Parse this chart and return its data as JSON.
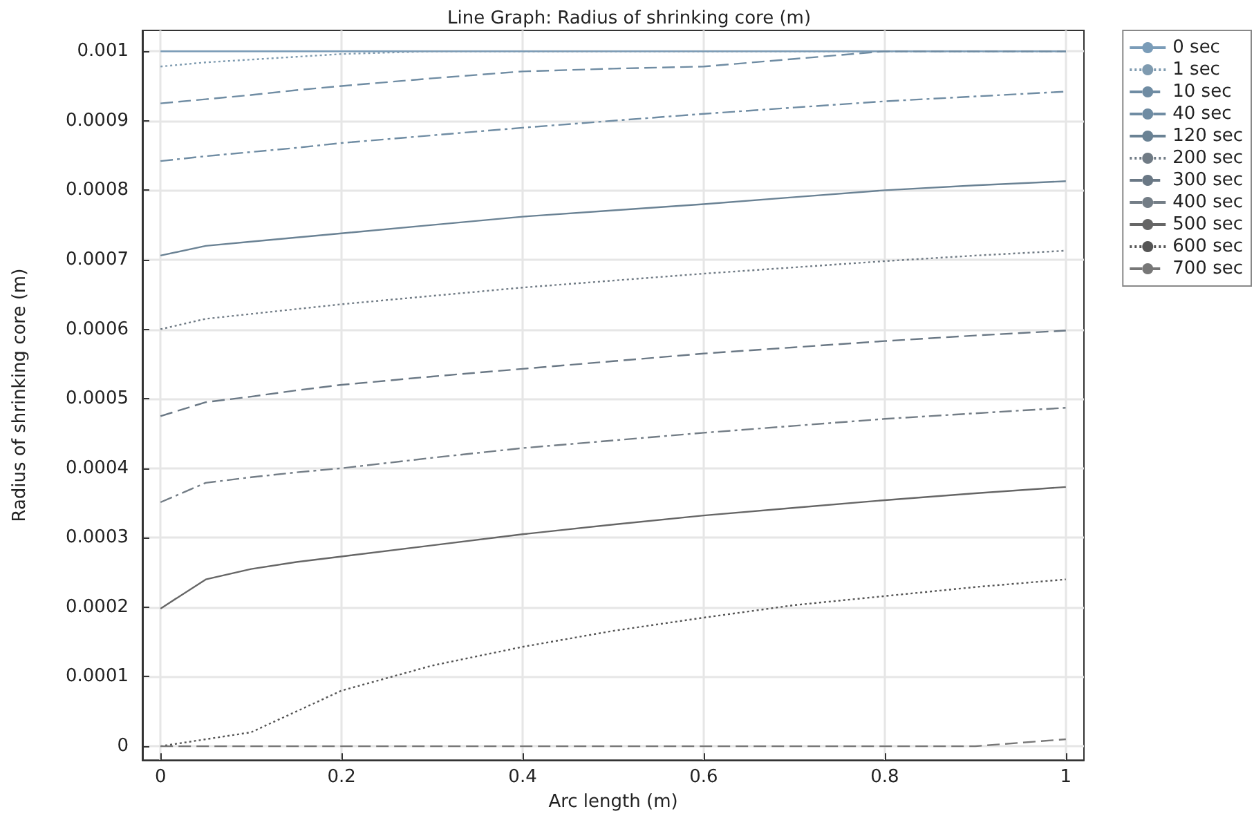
{
  "chart_data": {
    "type": "line",
    "title": "Line Graph: Radius of shrinking core (m)",
    "xlabel": "Arc length (m)",
    "ylabel": "Radius of shrinking core (m)",
    "x": [
      0,
      0.05,
      0.1,
      0.15,
      0.2,
      0.3,
      0.4,
      0.5,
      0.6,
      0.7,
      0.8,
      0.9,
      1
    ],
    "series": [
      {
        "name": "0 sec",
        "color": "#7a9cb8",
        "line_style": "solid",
        "values": [
          0.001,
          0.001,
          0.001,
          0.001,
          0.001,
          0.001,
          0.001,
          0.001,
          0.001,
          0.001,
          0.001,
          0.001,
          0.001
        ]
      },
      {
        "name": "1 sec",
        "color": "#7f9bb0",
        "line_style": "dotted",
        "values": [
          0.000978,
          0.000984,
          0.000988,
          0.000992,
          0.000996,
          0.001,
          0.001,
          0.001,
          0.001,
          0.001,
          0.001,
          0.001,
          0.001
        ]
      },
      {
        "name": "10 sec",
        "color": "#6f8ca3",
        "line_style": "dashed",
        "values": [
          0.000925,
          0.000931,
          0.000937,
          0.000944,
          0.00095,
          0.000961,
          0.000971,
          0.000975,
          0.000978,
          0.000989,
          0.001,
          0.001,
          0.001
        ]
      },
      {
        "name": "40 sec",
        "color": "#6f8ca3",
        "line_style": "dashdot",
        "values": [
          0.000842,
          0.000849,
          0.000855,
          0.000861,
          0.000868,
          0.000879,
          0.00089,
          0.0009,
          0.00091,
          0.000919,
          0.000928,
          0.000935,
          0.000942
        ]
      },
      {
        "name": "120 sec",
        "color": "#6a8294",
        "line_style": "solid",
        "values": [
          0.000706,
          0.00072,
          0.000726,
          0.000732,
          0.000738,
          0.00075,
          0.000762,
          0.000771,
          0.00078,
          0.00079,
          0.0008,
          0.000807,
          0.000813
        ]
      },
      {
        "name": "200 sec",
        "color": "#707b85",
        "line_style": "dotted",
        "values": [
          0.0006,
          0.000615,
          0.000622,
          0.000629,
          0.000636,
          0.000648,
          0.00066,
          0.00067,
          0.00068,
          0.000689,
          0.000698,
          0.000706,
          0.000713
        ]
      },
      {
        "name": "300 sec",
        "color": "#6a7885",
        "line_style": "dashed",
        "values": [
          0.000475,
          0.000495,
          0.000503,
          0.000512,
          0.00052,
          0.000532,
          0.000543,
          0.000554,
          0.000565,
          0.000574,
          0.000583,
          0.000591,
          0.000598
        ]
      },
      {
        "name": "400 sec",
        "color": "#737d86",
        "line_style": "dashdot",
        "values": [
          0.000351,
          0.000379,
          0.000387,
          0.000394,
          0.0004,
          0.000415,
          0.000429,
          0.00044,
          0.000451,
          0.000461,
          0.000471,
          0.000479,
          0.000487
        ]
      },
      {
        "name": "500 sec",
        "color": "#666666",
        "line_style": "solid",
        "values": [
          0.000198,
          0.00024,
          0.000255,
          0.000265,
          0.000273,
          0.000289,
          0.000305,
          0.000319,
          0.000332,
          0.000343,
          0.000354,
          0.000364,
          0.000373
        ]
      },
      {
        "name": "600 sec",
        "color": "#555555",
        "line_style": "dotted",
        "values": [
          0,
          1e-05,
          2e-05,
          5e-05,
          8e-05,
          0.000116,
          0.000143,
          0.000166,
          0.000185,
          0.000203,
          0.000216,
          0.000229,
          0.00024
        ]
      },
      {
        "name": "700 sec",
        "color": "#777777",
        "line_style": "dashed",
        "values": [
          0,
          0,
          0,
          0,
          0,
          0,
          0,
          0,
          0,
          0,
          0,
          0,
          1e-05
        ]
      }
    ],
    "xlim": [
      -0.02,
      1.02
    ],
    "xticks": [
      0,
      0.2,
      0.4,
      0.6,
      0.8,
      1
    ],
    "ylim": [
      -2e-05,
      0.00103
    ],
    "yticks": [
      0,
      0.0001,
      0.0002,
      0.0003,
      0.0004,
      0.0005,
      0.0006,
      0.0007,
      0.0008,
      0.0009,
      0.001
    ],
    "grid": true,
    "legend": "top right",
    "marker": "none"
  }
}
